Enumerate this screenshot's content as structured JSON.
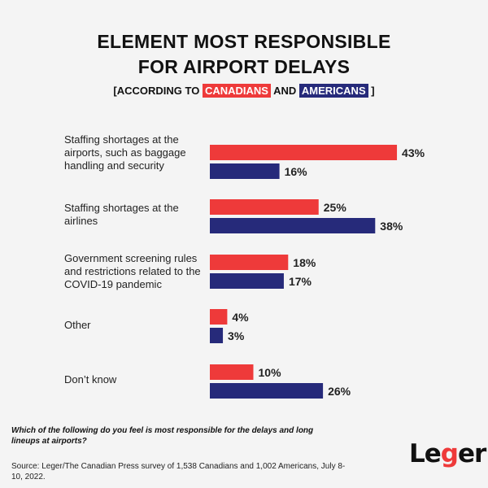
{
  "title_line1": "ELEMENT MOST RESPONSIBLE",
  "title_line2": "FOR AIRPORT DELAYS",
  "subtitle": {
    "prefix": "[ACCORDING TO",
    "canadians": "CANADIANS",
    "and": "AND",
    "americans": "AMERICANS",
    "suffix": "]"
  },
  "question": "Which of the following do you feel is most responsible for the delays and long lineups at airports?",
  "source": "Source: Leger/The Canadian Press survey of 1,538 Canadians and 1,002 Americans, July 8-10, 2022.",
  "logo": {
    "pre": "Le",
    "g": "g",
    "post": "er"
  },
  "colors": {
    "canadians": "#ee3a3a",
    "americans": "#262a7a"
  },
  "chart_data": {
    "type": "bar",
    "orientation": "horizontal",
    "title": "ELEMENT MOST RESPONSIBLE FOR AIRPORT DELAYS",
    "subtitle": "[ACCORDING TO CANADIANS AND AMERICANS]",
    "categories": [
      "Staffing shortages at the airports, such as baggage handling and security",
      "Staffing shortages at the airlines",
      "Government screening rules and restrictions related to the COVID-19 pandemic",
      "Other",
      "Don’t know"
    ],
    "series": [
      {
        "name": "CANADIANS",
        "values": [
          43,
          25,
          18,
          4,
          10
        ]
      },
      {
        "name": "AMERICANS",
        "values": [
          16,
          38,
          17,
          3,
          26
        ]
      }
    ],
    "unit": "%",
    "grid": false
  }
}
